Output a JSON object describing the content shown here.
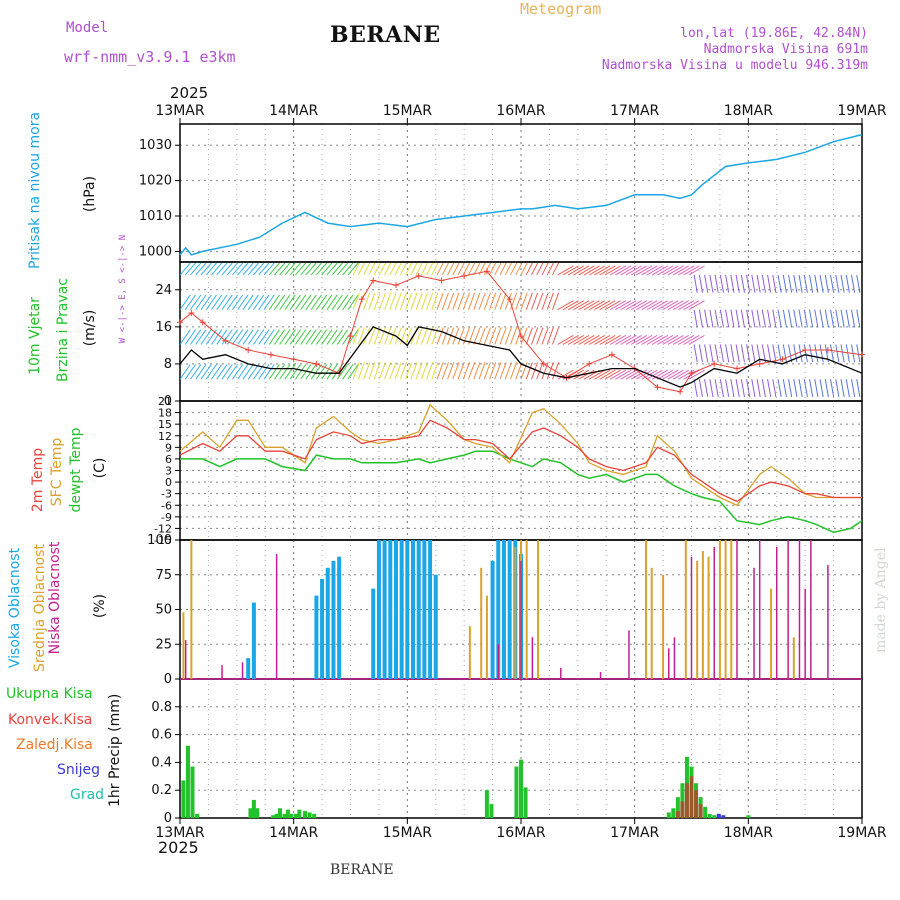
{
  "header": {
    "model_label": "Model",
    "model_name": "wrf-nmm_v3.9.1 e3km",
    "title": "BERANE",
    "meteogram_label": "Meteogram",
    "lonlat": "lon,lat (19.86E, 42.84N)",
    "elevation": "Nadmorska Visina 691m",
    "model_elevation": "Nadmorska Visina u modelu 946.319m",
    "year_top": "2025",
    "year_bottom": "2025",
    "footer_station": "BERANE",
    "watermark": "made by Angel"
  },
  "colors": {
    "pressure": "#1ba6e6",
    "temp2m": "#e8443a",
    "sfc": "#d9a22c",
    "dew": "#22c22a",
    "high_cloud": "#1ba6e6",
    "mid_cloud": "#d9a22c",
    "low_cloud": "#c0208f",
    "model_text": "#b04fcf",
    "meteogram_text": "#e8b35a"
  },
  "chart_data": [
    {
      "id": "pressure",
      "type": "line",
      "ylabel_lines": [
        "Pritisak na nivou mora",
        "(hPa)"
      ],
      "yticks": [
        1000,
        1010,
        1020,
        1030
      ],
      "ylim": [
        997,
        1036
      ],
      "x_days": [
        "13MAR",
        "14MAR",
        "15MAR",
        "16MAR",
        "17MAR",
        "18MAR",
        "19MAR"
      ],
      "series": [
        {
          "name": "Pritisak na nivou mora",
          "x": [
            0,
            0.05,
            0.1,
            0.2,
            0.35,
            0.5,
            0.7,
            0.9,
            1.1,
            1.3,
            1.5,
            1.75,
            2.0,
            2.25,
            2.5,
            2.75,
            3.0,
            3.1,
            3.3,
            3.5,
            3.75,
            4.0,
            4.25,
            4.4,
            4.5,
            4.6,
            4.8,
            5.0,
            5.25,
            5.5,
            5.75,
            6.0
          ],
          "values": [
            999,
            1001,
            999,
            1000,
            1001,
            1002,
            1004,
            1008,
            1011,
            1008,
            1007,
            1008,
            1007,
            1009,
            1010,
            1011,
            1012,
            1012,
            1013,
            1012,
            1013,
            1016,
            1016,
            1015,
            1016,
            1019,
            1024,
            1025,
            1026,
            1028,
            1031,
            1033
          ]
        }
      ]
    },
    {
      "id": "wind",
      "type": "line",
      "ylabel_lines": [
        "10m Vjetar",
        "Brzina i Pravac",
        "(m/s)"
      ],
      "yticks": [
        0,
        8,
        16,
        24
      ],
      "ylim": [
        0,
        30
      ],
      "direction_legend": "W <-|-> E, S <-|-> N",
      "series": [
        {
          "name": "Brzina (black)",
          "x": [
            0,
            0.1,
            0.2,
            0.4,
            0.6,
            0.8,
            1.0,
            1.2,
            1.4,
            1.7,
            1.9,
            2.0,
            2.1,
            2.3,
            2.5,
            2.7,
            2.9,
            3.0,
            3.2,
            3.4,
            3.6,
            3.8,
            4.0,
            4.2,
            4.4,
            4.5,
            4.7,
            4.9,
            5.1,
            5.3,
            5.5,
            5.7,
            6.0
          ],
          "values": [
            8,
            11,
            9,
            10,
            8,
            7,
            7,
            6,
            6,
            16,
            14,
            12,
            16,
            15,
            13,
            12,
            11,
            8,
            6,
            5,
            6,
            7,
            7,
            5,
            3,
            4,
            7,
            6,
            9,
            8,
            10,
            9,
            6
          ]
        },
        {
          "name": "Udari (red +)",
          "x": [
            0,
            0.1,
            0.2,
            0.4,
            0.6,
            0.8,
            1.0,
            1.2,
            1.4,
            1.5,
            1.6,
            1.7,
            1.9,
            2.1,
            2.3,
            2.5,
            2.7,
            2.9,
            3.0,
            3.2,
            3.4,
            3.6,
            3.8,
            4.0,
            4.2,
            4.4,
            4.5,
            4.7,
            4.9,
            5.1,
            5.3,
            5.5,
            5.7,
            6.0
          ],
          "values": [
            17,
            19,
            17,
            13,
            11,
            10,
            9,
            8,
            6,
            14,
            22,
            26,
            25,
            27,
            26,
            27,
            28,
            22,
            14,
            8,
            5,
            8,
            10,
            7,
            3,
            2,
            6,
            8,
            7,
            8,
            9,
            11,
            11,
            10
          ]
        }
      ]
    },
    {
      "id": "temperature",
      "type": "line",
      "ylabel_lines": [
        "2m Temp",
        "SFC Temp",
        "dewpt Temp",
        "(C)"
      ],
      "yticks": [
        -15,
        -12,
        -9,
        -6,
        -3,
        0,
        3,
        6,
        9,
        12,
        15,
        18,
        21
      ],
      "ylim": [
        -15,
        21
      ],
      "series": [
        {
          "name": "2m Temp",
          "x": [
            0,
            0.2,
            0.35,
            0.5,
            0.6,
            0.75,
            0.9,
            1.1,
            1.2,
            1.35,
            1.5,
            1.6,
            1.75,
            1.9,
            2.1,
            2.2,
            2.35,
            2.5,
            2.6,
            2.75,
            2.9,
            3.1,
            3.2,
            3.35,
            3.5,
            3.6,
            3.75,
            3.9,
            4.1,
            4.2,
            4.35,
            4.5,
            4.6,
            4.75,
            4.9,
            5.1,
            5.2,
            5.35,
            5.5,
            5.6,
            5.75,
            5.9,
            6.0
          ],
          "values": [
            7,
            10,
            8,
            12,
            12,
            8,
            8,
            6,
            11,
            13,
            12,
            10,
            11,
            11,
            12,
            16,
            14,
            11,
            11,
            10,
            6,
            13,
            14,
            12,
            9,
            6,
            4,
            3,
            5,
            9,
            7,
            2,
            0,
            -3,
            -5,
            -1,
            0,
            -1,
            -3,
            -3,
            -4,
            -4,
            -4
          ]
        },
        {
          "name": "SFC Temp",
          "x": [
            0,
            0.2,
            0.35,
            0.5,
            0.6,
            0.75,
            0.9,
            1.1,
            1.2,
            1.35,
            1.5,
            1.6,
            1.75,
            1.9,
            2.1,
            2.2,
            2.35,
            2.5,
            2.6,
            2.75,
            2.9,
            3.1,
            3.2,
            3.35,
            3.5,
            3.6,
            3.75,
            3.9,
            4.1,
            4.2,
            4.35,
            4.5,
            4.6,
            4.75,
            4.9,
            5.1,
            5.2,
            5.35,
            5.5,
            5.6,
            5.75,
            5.9,
            6.0
          ],
          "values": [
            8,
            13,
            9,
            16,
            16,
            9,
            9,
            5,
            14,
            17,
            13,
            11,
            10,
            11,
            13,
            20,
            16,
            11,
            10,
            9,
            5,
            18,
            19,
            15,
            10,
            5,
            3,
            2,
            4,
            12,
            8,
            1,
            -1,
            -4,
            -6,
            2,
            4,
            1,
            -3,
            -4,
            -4,
            -4,
            -4
          ]
        },
        {
          "name": "dewpt Temp",
          "x": [
            0,
            0.2,
            0.35,
            0.5,
            0.6,
            0.75,
            0.9,
            1.1,
            1.2,
            1.35,
            1.5,
            1.6,
            1.75,
            1.9,
            2.1,
            2.2,
            2.35,
            2.5,
            2.6,
            2.75,
            2.9,
            3.1,
            3.2,
            3.35,
            3.5,
            3.6,
            3.75,
            3.9,
            4.1,
            4.2,
            4.35,
            4.5,
            4.6,
            4.75,
            4.9,
            5.1,
            5.2,
            5.35,
            5.5,
            5.6,
            5.75,
            5.9,
            6.0
          ],
          "values": [
            6,
            6,
            4,
            6,
            6,
            6,
            4,
            3,
            7,
            6,
            6,
            5,
            5,
            5,
            6,
            5,
            6,
            7,
            8,
            8,
            6,
            4,
            6,
            5,
            2,
            1,
            2,
            0,
            2,
            2,
            -1,
            -3,
            -4,
            -5,
            -10,
            -11,
            -10,
            -9,
            -10,
            -11,
            -13,
            -12,
            -10
          ]
        }
      ]
    },
    {
      "id": "clouds",
      "type": "bar",
      "ylabel_lines": [
        "Visoka Oblacnost",
        "Srednja Oblacnost",
        "Niska Oblacnost",
        "(%)"
      ],
      "yticks": [
        0,
        25,
        50,
        75,
        100
      ],
      "ylim": [
        0,
        100
      ],
      "series": [
        {
          "name": "Visoka Oblacnost",
          "x": [
            0.6,
            0.65,
            1.2,
            1.25,
            1.3,
            1.35,
            1.4,
            1.7,
            1.75,
            1.8,
            1.85,
            1.9,
            1.95,
            2.0,
            2.05,
            2.1,
            2.15,
            2.2,
            2.25,
            2.75,
            2.8,
            2.85,
            2.9,
            2.95,
            3.0
          ],
          "values": [
            15,
            55,
            60,
            72,
            80,
            85,
            88,
            65,
            100,
            100,
            100,
            100,
            100,
            100,
            100,
            100,
            100,
            100,
            75,
            85,
            100,
            100,
            100,
            100,
            90
          ]
        },
        {
          "name": "Srednja Oblacnost",
          "x": [
            0.03,
            0.1,
            2.55,
            2.65,
            2.7,
            2.95,
            3.0,
            3.05,
            3.15,
            4.1,
            4.15,
            4.25,
            4.45,
            4.55,
            4.6,
            4.65,
            4.75,
            4.8,
            4.85,
            5.2,
            5.4
          ],
          "values": [
            48,
            100,
            38,
            80,
            60,
            95,
            100,
            100,
            100,
            100,
            80,
            75,
            100,
            85,
            92,
            88,
            100,
            100,
            100,
            65,
            30
          ]
        },
        {
          "name": "Niska Oblacnost",
          "x": [
            0.05,
            0.37,
            0.55,
            0.85,
            2.8,
            3.0,
            3.1,
            3.35,
            3.7,
            3.95,
            4.3,
            4.35,
            4.5,
            4.7,
            4.9,
            5.05,
            5.1,
            5.25,
            5.35,
            5.45,
            5.5,
            5.55,
            5.7
          ],
          "values": [
            28,
            10,
            12,
            90,
            25,
            85,
            30,
            8,
            5,
            35,
            22,
            30,
            88,
            95,
            100,
            80,
            100,
            95,
            100,
            100,
            65,
            100,
            82
          ]
        }
      ]
    },
    {
      "id": "precip",
      "type": "bar",
      "ylabel_lines": [
        "1hr Precip (mm)"
      ],
      "yticks": [
        0,
        0.2,
        0.4,
        0.6,
        0.8
      ],
      "ylim": [
        0,
        1.0
      ],
      "legend_labels": [
        "Ukupna Kisa",
        "Konvek.Kisa",
        "Zaledj.Kisa",
        "Snijeg",
        "Grad"
      ],
      "series": [
        {
          "name": "Ukupna Kisa",
          "x": [
            0.03,
            0.07,
            0.11,
            0.15,
            0.62,
            0.65,
            0.68,
            0.82,
            0.85,
            0.88,
            0.92,
            0.95,
            0.98,
            1.02,
            1.05,
            1.1,
            1.14,
            1.18,
            2.7,
            2.74,
            2.96,
            3.0,
            3.04,
            4.3,
            4.34,
            4.38,
            4.42,
            4.46,
            4.5,
            4.54,
            4.58,
            4.62,
            4.66,
            4.7,
            4.74,
            5.0
          ],
          "values": [
            0.27,
            0.52,
            0.37,
            0.03,
            0.07,
            0.13,
            0.07,
            0.02,
            0.03,
            0.07,
            0.03,
            0.06,
            0.03,
            0.03,
            0.06,
            0.05,
            0.04,
            0.03,
            0.2,
            0.1,
            0.37,
            0.42,
            0.22,
            0.04,
            0.07,
            0.15,
            0.25,
            0.44,
            0.37,
            0.25,
            0.15,
            0.08,
            0.03,
            0.02,
            0.02,
            0.02
          ]
        },
        {
          "name": "Konvek.Kisa",
          "x": [
            4.38,
            4.42,
            4.46,
            4.5,
            4.54,
            4.58
          ],
          "values": [
            0.05,
            0.12,
            0.25,
            0.3,
            0.2,
            0.1
          ]
        },
        {
          "name": "Snijeg",
          "x": [
            4.74,
            4.78
          ],
          "values": [
            0.03,
            0.02
          ]
        }
      ]
    }
  ]
}
